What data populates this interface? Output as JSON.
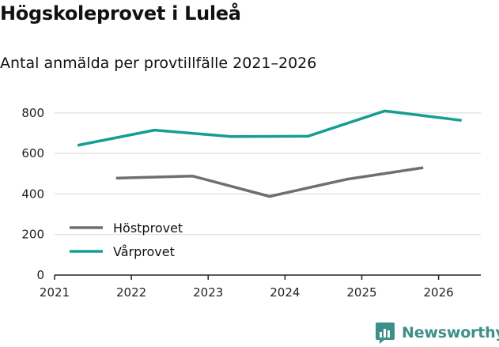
{
  "header": {
    "title": "Högskoleprovet i Luleå",
    "subtitle": "Antal anmälda per provtillfälle 2021–2026"
  },
  "brand": {
    "name": "Newsworthy",
    "icon": "bar-chart-bubble-icon",
    "color": "#3d8f8a"
  },
  "chart_data": {
    "type": "line",
    "title": "Högskoleprovet i Luleå",
    "subtitle": "Antal anmälda per provtillfälle 2021–2026",
    "xlabel": "",
    "ylabel": "",
    "xlim": [
      2021,
      2026.55
    ],
    "ylim": [
      0,
      850
    ],
    "x_ticks": [
      "2021",
      "2022",
      "2023",
      "2024",
      "2025",
      "2026"
    ],
    "y_ticks": [
      "0",
      "200",
      "400",
      "600",
      "800"
    ],
    "grid": true,
    "legend_position": "bottom-left",
    "series": [
      {
        "name": "Höstprovet",
        "color": "#6e6e73",
        "x": [
          2021.8,
          2022.8,
          2023.8,
          2024.8,
          2025.8
        ],
        "values": [
          478,
          488,
          388,
          472,
          530
        ]
      },
      {
        "name": "Vårprovet",
        "color": "#169e94",
        "x": [
          2021.3,
          2022.3,
          2023.3,
          2024.3,
          2025.3,
          2026.3
        ],
        "values": [
          640,
          715,
          683,
          685,
          810,
          763
        ]
      }
    ]
  }
}
